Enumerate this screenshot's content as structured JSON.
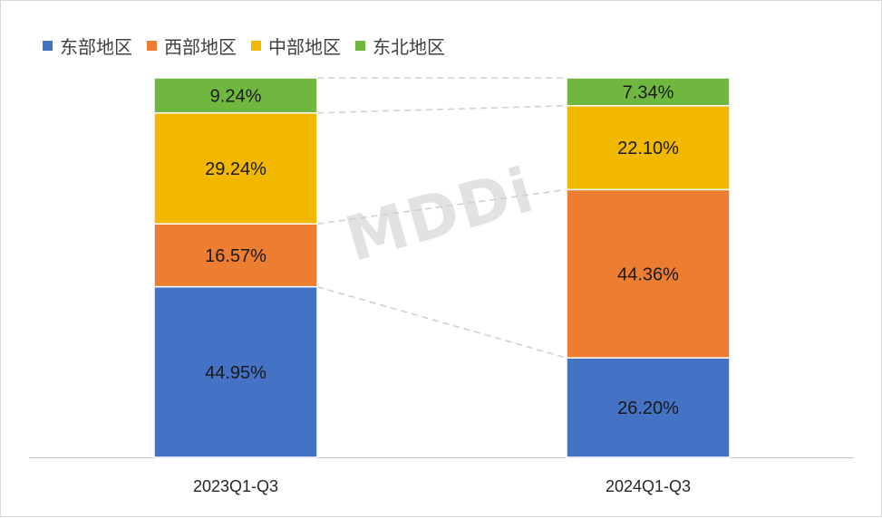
{
  "legend": [
    {
      "label": "东部地区",
      "color": "#4472c4"
    },
    {
      "label": "西部地区",
      "color": "#ed7d31"
    },
    {
      "label": "中部地区",
      "color": "#f2b800"
    },
    {
      "label": "东北地区",
      "color": "#70b740"
    }
  ],
  "watermark": "MDDi",
  "chart_data": {
    "type": "bar",
    "stacked": true,
    "categories": [
      "2023Q1-Q3",
      "2024Q1-Q3"
    ],
    "series": [
      {
        "name": "东部地区",
        "color": "#4472c4",
        "values": [
          44.95,
          26.2
        ],
        "labels": [
          "44.95%",
          "26.20%"
        ]
      },
      {
        "name": "西部地区",
        "color": "#ed7d31",
        "values": [
          16.57,
          44.36
        ],
        "labels": [
          "16.57%",
          "44.36%"
        ]
      },
      {
        "name": "中部地区",
        "color": "#f2b800",
        "values": [
          29.24,
          22.1
        ],
        "labels": [
          "29.24%",
          "22.10%"
        ]
      },
      {
        "name": "东北地区",
        "color": "#70b740",
        "values": [
          9.24,
          7.34
        ],
        "labels": [
          "9.24%",
          "7.34%"
        ]
      }
    ],
    "ylim": [
      0,
      100
    ],
    "legend_position": "top-left",
    "grid": false,
    "connector_lines": true
  }
}
